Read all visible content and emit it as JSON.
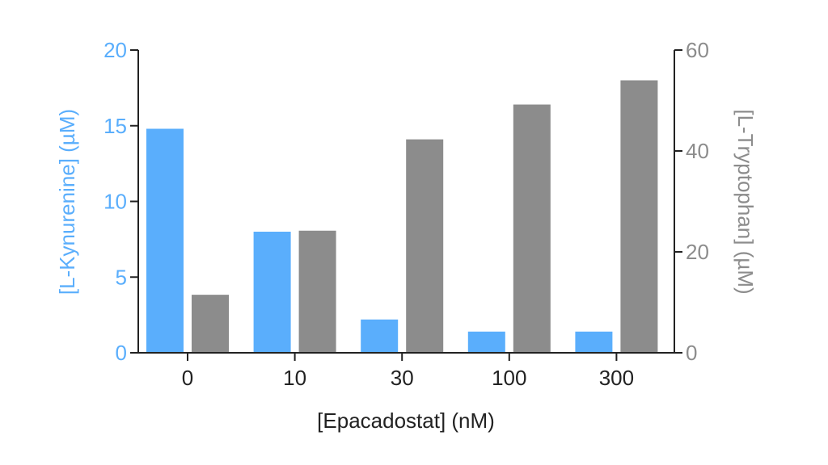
{
  "chart_data": {
    "type": "bar",
    "categories": [
      "0",
      "10",
      "30",
      "100",
      "300"
    ],
    "xlabel": "[Epacadostat] (nM)",
    "ylabel_left": "[L-Kynurenine] (µM)",
    "ylabel_right": "[L-Tryptophan] (µM)",
    "ylim_left": [
      0,
      20
    ],
    "ylim_right": [
      0,
      60
    ],
    "yticks_left": [
      "0",
      "5",
      "10",
      "15",
      "20"
    ],
    "yticks_right": [
      "0",
      "20",
      "40",
      "60"
    ],
    "grid": false,
    "legend": "none",
    "series": [
      {
        "axis": "left",
        "color": "#5aaefc",
        "values": [
          14.8,
          8.0,
          2.2,
          1.4,
          1.4
        ]
      },
      {
        "axis": "right",
        "color": "#8c8c8c",
        "values": [
          11.5,
          24.2,
          42.3,
          49.2,
          54.0
        ]
      }
    ],
    "colors": {
      "left_axis_text": "#5aaefc",
      "right_axis_text": "#8c8c8c",
      "axis_line": "#222222"
    }
  }
}
